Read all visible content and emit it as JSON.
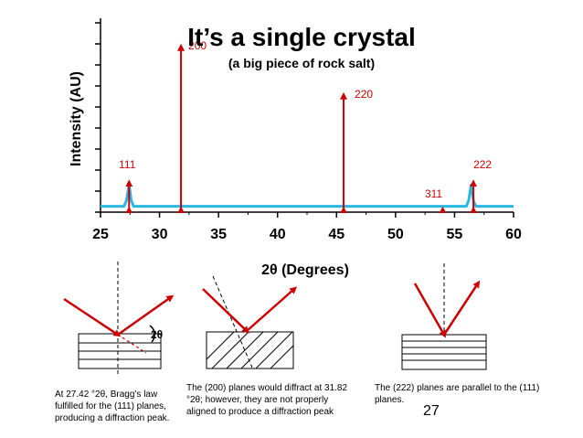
{
  "slide": {
    "title": "It’s a single crystal",
    "subtitle": "(a big piece of rock salt)",
    "page_number": "27"
  },
  "colors": {
    "spectrum": "#2ab7e6",
    "peak": "#cc0000",
    "ray": "#cc0000"
  },
  "chart_data": {
    "type": "line",
    "xlabel": "2θ (Degrees)",
    "ylabel": "Intensity (AU)",
    "xlim": [
      25,
      60
    ],
    "x_ticks": [
      "25",
      "30",
      "35",
      "40",
      "45",
      "50",
      "55",
      "60"
    ],
    "grid": false,
    "series": [
      {
        "x": [
          25,
          27.0,
          27.2,
          27.42,
          27.6,
          27.8,
          56.0,
          56.2,
          56.4,
          56.6,
          56.8,
          60
        ],
        "y": [
          0.03,
          0.03,
          0.06,
          0.14,
          0.06,
          0.03,
          0.03,
          0.06,
          0.14,
          0.06,
          0.03,
          0.03
        ]
      }
    ],
    "peaks": [
      {
        "label": "111",
        "x": 27.42,
        "height": 0.15
      },
      {
        "label": "200",
        "x": 31.82,
        "height": 0.85
      },
      {
        "label": "220",
        "x": 45.6,
        "height": 0.6
      },
      {
        "label": "311",
        "x": 54.0,
        "height": 0.02
      },
      {
        "label": "222",
        "x": 56.6,
        "height": 0.15
      }
    ]
  },
  "diagrams": [
    {
      "angle_label": "2θ",
      "caption": [
        "At 27.42 °2θ, Bragg’s law",
        "fulfilled for the (111) planes,",
        "producing a diffraction peak."
      ]
    },
    {
      "caption": [
        "The (200) planes would diffract at 31.82",
        "°2θ; however, they are not properly",
        "aligned to produce a diffraction peak"
      ]
    },
    {
      "caption": [
        "The (222) planes are parallel to the (111)",
        "planes."
      ]
    }
  ]
}
